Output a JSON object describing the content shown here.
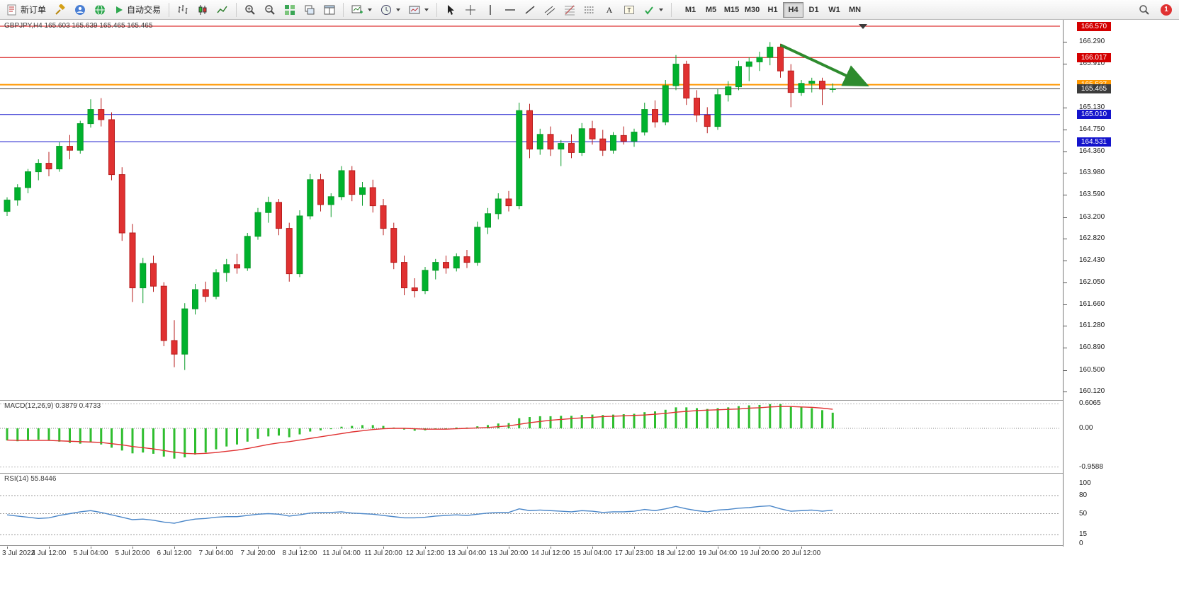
{
  "toolbar": {
    "new_order_label": "新订单",
    "auto_trading_label": "自动交易",
    "timeframes": [
      "M1",
      "M5",
      "M15",
      "M30",
      "H1",
      "H4",
      "D1",
      "W1",
      "MN"
    ],
    "active_timeframe": "H4",
    "notification_count": "1"
  },
  "chart": {
    "symbol_label": "GBPJPY,H4 165.603 165.639 165.465 165.465",
    "macd_label": "MACD(12,26,9) 0.3879 0.4733",
    "rsi_label": "RSI(14) 55.8446",
    "colors": {
      "bull": "#00b22d",
      "bear": "#e03131",
      "bull_wick": "#089b29",
      "bear_wick": "#b71c1c",
      "macd_hist": "#2fbe2f",
      "macd_signal": "#e03131",
      "rsi_line": "#4a86c8",
      "level_red": "#d40000",
      "level_orange": "#ff9800",
      "level_blue": "#1414cc",
      "current_price": "#3c3c3c"
    },
    "price_axis_ticks": [
      "166.290",
      "165.910",
      "165.130",
      "164.750",
      "164.360",
      "163.980",
      "163.590",
      "163.200",
      "162.820",
      "162.430",
      "162.050",
      "161.660",
      "161.280",
      "160.890",
      "160.500",
      "160.120"
    ],
    "macd_axis_ticks": [
      "0.6065",
      "0.00",
      "-0.9588"
    ],
    "rsi_axis_ticks": [
      "100",
      "80",
      "50",
      "15",
      "0"
    ]
  },
  "chart_data": {
    "type": "candlestick",
    "symbol": "GBPJPY",
    "timeframe": "H4",
    "ohlc_display": {
      "open": "165.603",
      "high": "165.639",
      "low": "165.465",
      "close": "165.465"
    },
    "levels": [
      {
        "price": 166.57,
        "label": "166.570",
        "color": "#d40000",
        "width": 1
      },
      {
        "price": 166.017,
        "label": "166.017",
        "color": "#d40000",
        "width": 1
      },
      {
        "price": 165.537,
        "label": "165.537",
        "color": "#ff9800",
        "width": 2
      },
      {
        "price": 165.465,
        "label": "165.465",
        "color": "#3c3c3c",
        "width": 1,
        "role": "current-price"
      },
      {
        "price": 165.01,
        "label": "165.010",
        "color": "#1414cc",
        "width": 1
      },
      {
        "price": 164.531,
        "label": "164.531",
        "color": "#1414cc",
        "width": 1
      }
    ],
    "time_labels": [
      "3 Jul 2022",
      "4 Jul 12:00",
      "5 Jul 04:00",
      "5 Jul 20:00",
      "6 Jul 12:00",
      "7 Jul 04:00",
      "7 Jul 20:00",
      "8 Jul 12:00",
      "11 Jul 04:00",
      "11 Jul 20:00",
      "12 Jul 12:00",
      "13 Jul 04:00",
      "13 Jul 20:00",
      "14 Jul 12:00",
      "15 Jul 04:00",
      "17 Jul 23:00",
      "18 Jul 12:00",
      "19 Jul 04:00",
      "19 Jul 20:00",
      "20 Jul 12:00"
    ],
    "candles": [
      [
        163.3,
        163.55,
        163.22,
        163.5
      ],
      [
        163.5,
        163.78,
        163.4,
        163.72
      ],
      [
        163.72,
        164.05,
        163.62,
        164.0
      ],
      [
        164.0,
        164.22,
        163.85,
        164.15
      ],
      [
        164.15,
        164.35,
        163.92,
        164.05
      ],
      [
        164.05,
        164.52,
        164.0,
        164.45
      ],
      [
        164.45,
        164.65,
        164.22,
        164.38
      ],
      [
        164.38,
        164.9,
        164.32,
        164.85
      ],
      [
        164.85,
        165.28,
        164.78,
        165.1
      ],
      [
        165.1,
        165.3,
        164.8,
        164.92
      ],
      [
        164.92,
        165.05,
        163.85,
        163.95
      ],
      [
        163.95,
        164.08,
        162.78,
        162.92
      ],
      [
        162.92,
        163.08,
        161.7,
        161.95
      ],
      [
        161.95,
        162.48,
        161.68,
        162.38
      ],
      [
        162.38,
        162.52,
        161.88,
        161.98
      ],
      [
        161.98,
        162.05,
        160.92,
        161.02
      ],
      [
        161.02,
        161.38,
        160.55,
        160.78
      ],
      [
        160.78,
        161.68,
        160.5,
        161.58
      ],
      [
        161.58,
        162.02,
        161.48,
        161.92
      ],
      [
        161.92,
        162.06,
        161.7,
        161.8
      ],
      [
        161.8,
        162.28,
        161.75,
        162.22
      ],
      [
        162.22,
        162.46,
        162.06,
        162.36
      ],
      [
        162.36,
        162.55,
        162.2,
        162.3
      ],
      [
        162.3,
        162.92,
        162.25,
        162.86
      ],
      [
        162.86,
        163.36,
        162.8,
        163.28
      ],
      [
        163.28,
        163.56,
        163.1,
        163.46
      ],
      [
        163.46,
        163.52,
        162.88,
        163.0
      ],
      [
        163.0,
        163.1,
        162.06,
        162.2
      ],
      [
        162.2,
        163.32,
        162.14,
        163.22
      ],
      [
        163.22,
        163.96,
        163.16,
        163.86
      ],
      [
        163.86,
        163.96,
        163.3,
        163.42
      ],
      [
        163.42,
        163.62,
        163.2,
        163.56
      ],
      [
        163.56,
        164.1,
        163.5,
        164.02
      ],
      [
        164.02,
        164.1,
        163.48,
        163.6
      ],
      [
        163.6,
        163.82,
        163.4,
        163.72
      ],
      [
        163.72,
        163.86,
        163.28,
        163.4
      ],
      [
        163.4,
        163.52,
        162.88,
        163.0
      ],
      [
        163.0,
        163.1,
        162.28,
        162.4
      ],
      [
        162.4,
        162.52,
        161.82,
        161.95
      ],
      [
        161.95,
        162.12,
        161.78,
        161.9
      ],
      [
        161.9,
        162.32,
        161.84,
        162.26
      ],
      [
        162.26,
        162.46,
        162.1,
        162.4
      ],
      [
        162.4,
        162.52,
        162.2,
        162.3
      ],
      [
        162.3,
        162.56,
        162.24,
        162.5
      ],
      [
        162.5,
        162.62,
        162.3,
        162.4
      ],
      [
        162.4,
        163.12,
        162.34,
        163.02
      ],
      [
        163.02,
        163.36,
        162.9,
        163.26
      ],
      [
        163.26,
        163.62,
        163.16,
        163.52
      ],
      [
        163.52,
        163.66,
        163.3,
        163.4
      ],
      [
        163.4,
        165.22,
        163.34,
        165.08
      ],
      [
        165.08,
        165.2,
        164.24,
        164.4
      ],
      [
        164.4,
        164.76,
        164.3,
        164.66
      ],
      [
        164.66,
        164.8,
        164.28,
        164.4
      ],
      [
        164.4,
        164.56,
        164.1,
        164.5
      ],
      [
        164.5,
        164.66,
        164.24,
        164.34
      ],
      [
        164.34,
        164.86,
        164.28,
        164.76
      ],
      [
        164.76,
        164.9,
        164.48,
        164.58
      ],
      [
        164.58,
        164.74,
        164.28,
        164.38
      ],
      [
        164.38,
        164.7,
        164.32,
        164.64
      ],
      [
        164.64,
        164.8,
        164.48,
        164.54
      ],
      [
        164.54,
        164.76,
        164.44,
        164.7
      ],
      [
        164.7,
        165.22,
        164.64,
        165.1
      ],
      [
        165.1,
        165.26,
        164.78,
        164.88
      ],
      [
        164.88,
        165.62,
        164.82,
        165.52
      ],
      [
        165.52,
        166.06,
        165.44,
        165.9
      ],
      [
        165.9,
        165.96,
        165.18,
        165.3
      ],
      [
        165.3,
        165.44,
        164.88,
        165.0
      ],
      [
        165.0,
        165.14,
        164.68,
        164.8
      ],
      [
        164.8,
        165.46,
        164.74,
        165.36
      ],
      [
        165.36,
        165.6,
        165.24,
        165.5
      ],
      [
        165.5,
        165.96,
        165.44,
        165.86
      ],
      [
        165.86,
        166.02,
        165.6,
        165.94
      ],
      [
        165.94,
        166.12,
        165.78,
        166.02
      ],
      [
        166.02,
        166.29,
        165.88,
        166.2
      ],
      [
        166.2,
        166.26,
        165.66,
        165.78
      ],
      [
        165.78,
        165.9,
        165.14,
        165.4
      ],
      [
        165.4,
        165.62,
        165.34,
        165.56
      ],
      [
        165.56,
        165.66,
        165.4,
        165.6
      ],
      [
        165.6,
        165.66,
        165.18,
        165.46
      ],
      [
        165.46,
        165.56,
        165.4,
        165.465
      ]
    ],
    "macd": {
      "hist": [
        -0.3,
        -0.32,
        -0.3,
        -0.28,
        -0.3,
        -0.33,
        -0.36,
        -0.38,
        -0.35,
        -0.4,
        -0.48,
        -0.55,
        -0.62,
        -0.6,
        -0.63,
        -0.7,
        -0.75,
        -0.72,
        -0.65,
        -0.6,
        -0.52,
        -0.45,
        -0.4,
        -0.33,
        -0.26,
        -0.2,
        -0.18,
        -0.22,
        -0.15,
        -0.08,
        -0.05,
        -0.02,
        0.04,
        0.06,
        0.08,
        0.08,
        0.06,
        0.02,
        -0.03,
        -0.06,
        -0.05,
        -0.02,
        0.0,
        0.02,
        0.02,
        0.05,
        0.08,
        0.12,
        0.13,
        0.25,
        0.28,
        0.3,
        0.3,
        0.31,
        0.31,
        0.33,
        0.34,
        0.33,
        0.34,
        0.35,
        0.36,
        0.4,
        0.42,
        0.46,
        0.52,
        0.52,
        0.5,
        0.48,
        0.5,
        0.52,
        0.55,
        0.57,
        0.58,
        0.6,
        0.6,
        0.55,
        0.52,
        0.5,
        0.45,
        0.3879
      ],
      "signal": [
        -0.29,
        -0.3,
        -0.3,
        -0.3,
        -0.3,
        -0.31,
        -0.32,
        -0.33,
        -0.34,
        -0.35,
        -0.38,
        -0.41,
        -0.45,
        -0.48,
        -0.51,
        -0.55,
        -0.59,
        -0.62,
        -0.63,
        -0.62,
        -0.6,
        -0.57,
        -0.54,
        -0.5,
        -0.45,
        -0.4,
        -0.36,
        -0.33,
        -0.29,
        -0.25,
        -0.21,
        -0.17,
        -0.13,
        -0.09,
        -0.06,
        -0.03,
        -0.01,
        0.0,
        0.0,
        -0.01,
        -0.02,
        -0.02,
        -0.02,
        -0.01,
        0.0,
        0.01,
        0.02,
        0.04,
        0.06,
        0.1,
        0.14,
        0.17,
        0.2,
        0.22,
        0.24,
        0.26,
        0.27,
        0.29,
        0.3,
        0.31,
        0.32,
        0.33,
        0.35,
        0.37,
        0.4,
        0.42,
        0.44,
        0.45,
        0.46,
        0.47,
        0.48,
        0.5,
        0.51,
        0.53,
        0.54,
        0.54,
        0.53,
        0.52,
        0.5,
        0.4733
      ],
      "main_value": 0.3879,
      "signal_value": 0.4733
    },
    "rsi": {
      "values": [
        48,
        46,
        44,
        42,
        43,
        47,
        50,
        53,
        55,
        52,
        48,
        44,
        40,
        41,
        39,
        36,
        34,
        38,
        41,
        42,
        44,
        45,
        45,
        47,
        49,
        50,
        49,
        46,
        48,
        51,
        52,
        52,
        53,
        51,
        50,
        49,
        47,
        45,
        43,
        43,
        44,
        46,
        47,
        48,
        47,
        49,
        51,
        52,
        52,
        58,
        55,
        56,
        55,
        54,
        53,
        55,
        54,
        52,
        53,
        53,
        54,
        57,
        55,
        58,
        62,
        58,
        55,
        53,
        56,
        57,
        59,
        60,
        62,
        63,
        58,
        54,
        55,
        56,
        54,
        55.8
      ],
      "levels": [
        80,
        50,
        15
      ],
      "current_value": 55.8446
    },
    "annotations": [
      {
        "type": "arrow",
        "from_index": 74,
        "from_price": 166.24,
        "to_index": 82,
        "to_price": 165.55,
        "color": "#2e8b2e"
      }
    ]
  }
}
